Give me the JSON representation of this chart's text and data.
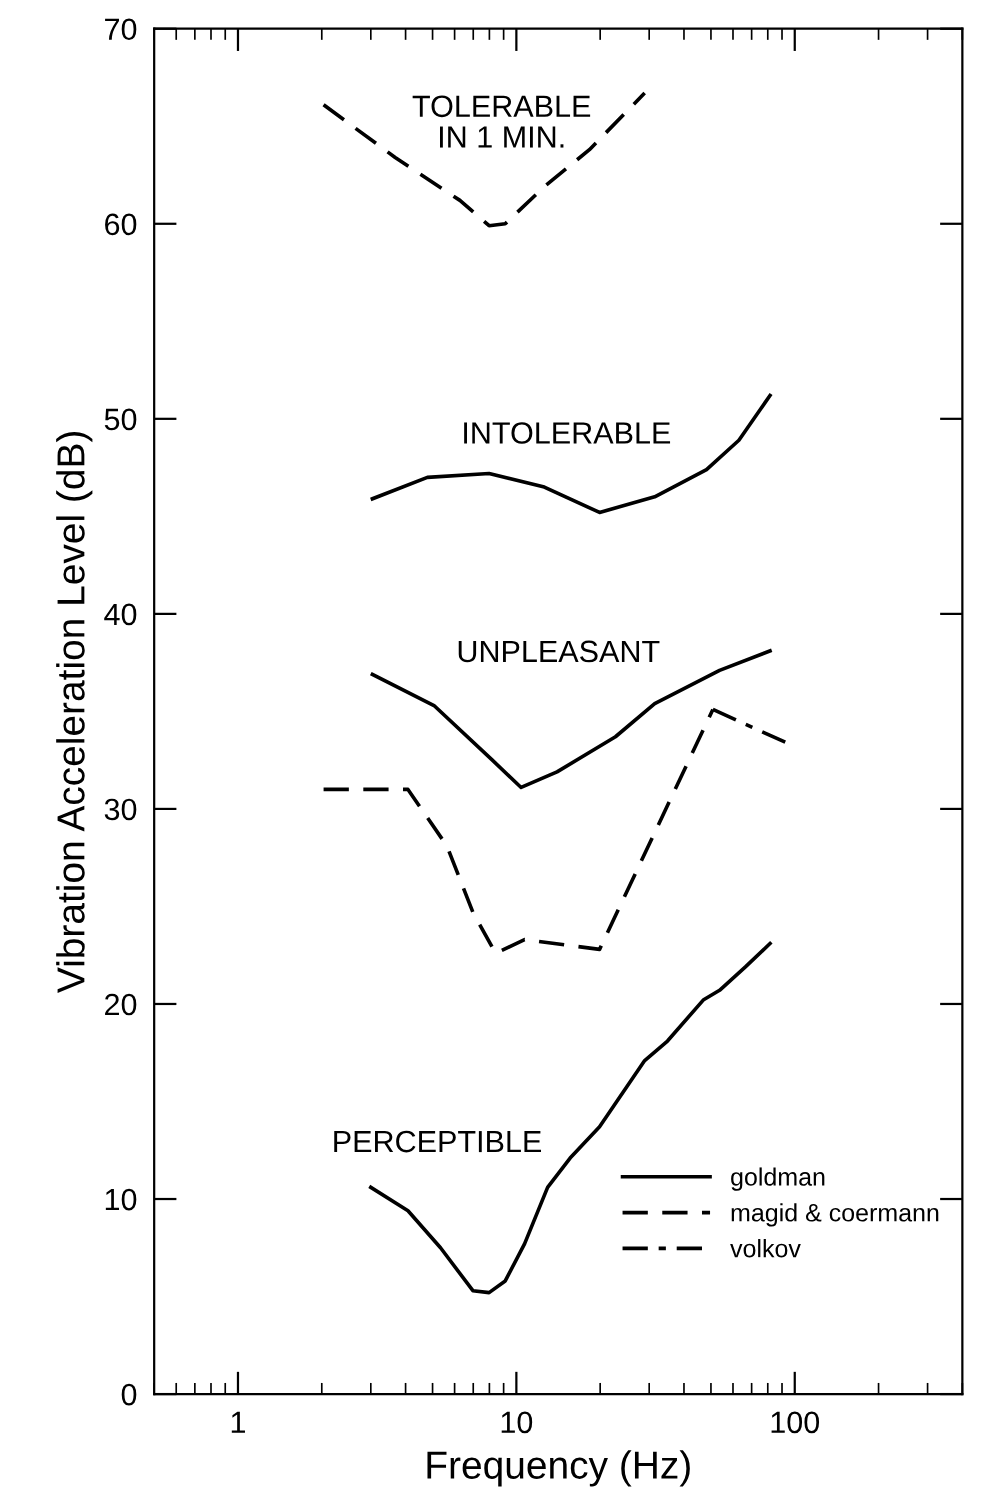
{
  "chart_data": {
    "type": "line",
    "xlabel": "Frequency (Hz)",
    "ylabel": "Vibration Acceleration Level (dB)",
    "log": "x",
    "xlim": [
      0.5,
      400
    ],
    "xticks": [
      1,
      10,
      100
    ],
    "ylim": [
      0,
      70
    ],
    "yticks": [
      0,
      10,
      20,
      30,
      40,
      50,
      60,
      70
    ],
    "grid": false,
    "legend": "bottom right",
    "marker": "none",
    "series": [
      {
        "name": "goldman",
        "color": "#000000",
        "line_style": "solid",
        "x": [
          3.04,
          4.79,
          7.98,
          12.6,
          19.9,
          31.4,
          48.2,
          63,
          81.5
        ],
        "values": [
          45.9,
          47.0,
          47.2,
          46.5,
          45.2,
          46.0,
          47.4,
          48.9,
          51.2
        ]
      },
      {
        "color": "#000000",
        "line_style": "solid",
        "x": [
          3.04,
          5.06,
          8.2,
          10.4,
          14.0,
          22.7,
          31.4,
          53.7,
          81.5
        ],
        "values": [
          36.9,
          35.3,
          32.5,
          31.1,
          31.9,
          33.7,
          35.4,
          37.1,
          38.1
        ]
      },
      {
        "color": "#000000",
        "line_style": "solid",
        "x": [
          3.0,
          4.08,
          5.34,
          6.98,
          7.98,
          9.12,
          10.7,
          12.95,
          15.6,
          19.9,
          28.9,
          34.9,
          46.9,
          53.7,
          66.5,
          81.5
        ],
        "values": [
          10.6,
          9.4,
          7.5,
          5.3,
          5.2,
          5.8,
          7.7,
          10.6,
          12.1,
          13.7,
          17.1,
          18.1,
          20.2,
          20.7,
          21.9,
          23.1
        ]
      },
      {
        "name": "magid & coermann",
        "color": "#000000",
        "line_style": "dashed",
        "x": [
          2.03,
          3.67,
          6.27,
          7.98,
          9.12,
          12.6,
          18.3,
          28.9
        ],
        "values": [
          66.1,
          63.4,
          61.2,
          59.9,
          60.0,
          61.9,
          63.8,
          66.7
        ]
      },
      {
        "color": "#000000",
        "line_style": "dashed",
        "x": [
          2.03,
          4.08,
          5.63,
          6.98,
          8.42,
          10.7,
          19.9,
          50.8
        ],
        "values": [
          31.0,
          31.0,
          28.1,
          24.7,
          22.6,
          23.3,
          22.8,
          35.1
        ]
      },
      {
        "name": "volkov",
        "color": "#000000",
        "line_style": "dashdot",
        "x": [
          50.8,
          100
        ],
        "values": [
          35.1,
          33.2
        ]
      }
    ],
    "annotations": [
      "TOLERABLE\nIN 1 MIN.",
      "INTOLERABLE",
      "UNPLEASANT",
      "PERCEPTIBLE"
    ]
  }
}
